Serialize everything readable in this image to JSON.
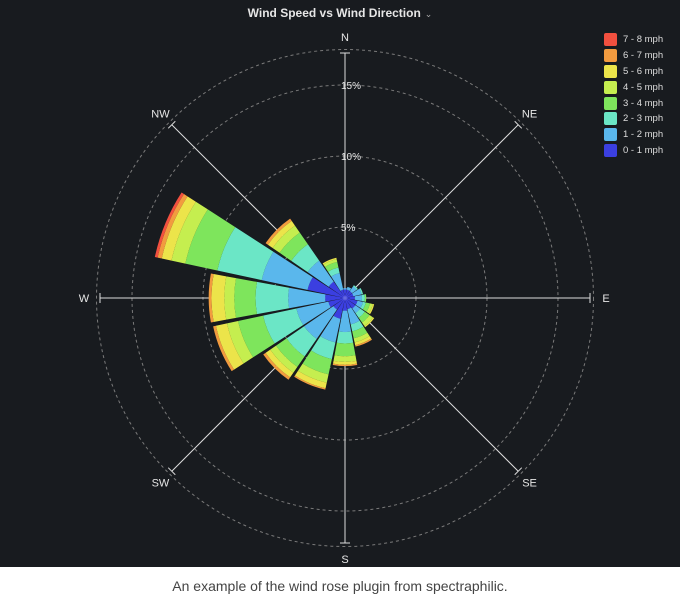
{
  "title": "Wind Speed vs Wind Direction",
  "caption": "An example of the wind rose plugin from spectraphilic.",
  "icons": {
    "title_dropdown": "chevron-down-icon"
  },
  "colors": {
    "background": "#181b1f",
    "axis": "#dddddd",
    "grid": "#7a7a7a",
    "text": "#e6e6e6"
  },
  "chart_data": {
    "type": "windrose",
    "title": "Wind Speed vs Wind Direction",
    "radial_ticks": [
      "5%",
      "10%",
      "15%"
    ],
    "radial_tick_values": [
      5,
      10,
      15
    ],
    "radial_max": 17.5,
    "grid": true,
    "legend_position": "top-right",
    "compass_labels": [
      "N",
      "NE",
      "E",
      "SE",
      "S",
      "SW",
      "W",
      "NW"
    ],
    "legend": [
      {
        "label": "7 - 8 mph",
        "color": "#f2503f"
      },
      {
        "label": "6 - 7 mph",
        "color": "#f29b3f"
      },
      {
        "label": "5 - 6 mph",
        "color": "#ece44a"
      },
      {
        "label": "4 - 5 mph",
        "color": "#c5ee4f"
      },
      {
        "label": "3 - 4 mph",
        "color": "#7ee55c"
      },
      {
        "label": "2 - 3 mph",
        "color": "#6be6c6"
      },
      {
        "label": "1 - 2 mph",
        "color": "#5ab7ec"
      },
      {
        "label": "0 - 1 mph",
        "color": "#3b3fe0"
      }
    ],
    "series": [
      {
        "name": "0 - 1 mph",
        "values": [
          0.6,
          0.6,
          0.6,
          0.6,
          0.7,
          0.9,
          0.9,
          0.8,
          0.9,
          1.5,
          1.0,
          1.2,
          1.4,
          2.7,
          1.4,
          0.6
        ]
      },
      {
        "name": "1 - 2 mph",
        "values": [
          0.1,
          0.2,
          0.4,
          0.6,
          0.5,
          0.4,
          0.4,
          1.1,
          1.5,
          1.7,
          2.5,
          2.3,
          2.6,
          3.3,
          1.8,
          1.2
        ]
      },
      {
        "name": "2 - 3 mph",
        "values": [
          0.0,
          0.0,
          0.1,
          0.1,
          0.2,
          0.2,
          0.4,
          0.5,
          0.8,
          1.2,
          1.5,
          2.4,
          2.3,
          3.2,
          1.4,
          0.4
        ]
      },
      {
        "name": "3 - 4 mph",
        "values": [
          0.0,
          0.0,
          0.0,
          0.0,
          0.1,
          0.3,
          0.4,
          0.5,
          0.9,
          1.1,
          0.9,
          1.8,
          1.5,
          2.3,
          1.0,
          0.4
        ]
      },
      {
        "name": "4 - 5 mph",
        "values": [
          0.0,
          0.0,
          0.0,
          0.0,
          0.0,
          0.2,
          0.3,
          0.3,
          0.4,
          0.6,
          0.5,
          0.8,
          0.7,
          1.0,
          0.6,
          0.2
        ]
      },
      {
        "name": "5 - 6 mph",
        "values": [
          0.0,
          0.0,
          0.0,
          0.0,
          0.0,
          0.1,
          0.1,
          0.2,
          0.2,
          0.4,
          0.4,
          0.8,
          0.9,
          0.7,
          0.4,
          0.1
        ]
      },
      {
        "name": "6 - 7 mph",
        "values": [
          0.0,
          0.0,
          0.0,
          0.0,
          0.0,
          0.0,
          0.0,
          0.1,
          0.1,
          0.1,
          0.2,
          0.2,
          0.2,
          0.3,
          0.2,
          0.0
        ]
      },
      {
        "name": "7 - 8 mph",
        "values": [
          0.0,
          0.0,
          0.0,
          0.0,
          0.0,
          0.0,
          0.0,
          0.0,
          0.0,
          0.0,
          0.0,
          0.0,
          0.0,
          0.2,
          0.0,
          0.0
        ]
      }
    ],
    "directions": [
      "N",
      "NNE",
      "NE",
      "ENE",
      "E",
      "ESE",
      "SE",
      "SSE",
      "S",
      "SSW",
      "SW",
      "WSW",
      "W",
      "WNW",
      "NW",
      "NNW"
    ]
  }
}
